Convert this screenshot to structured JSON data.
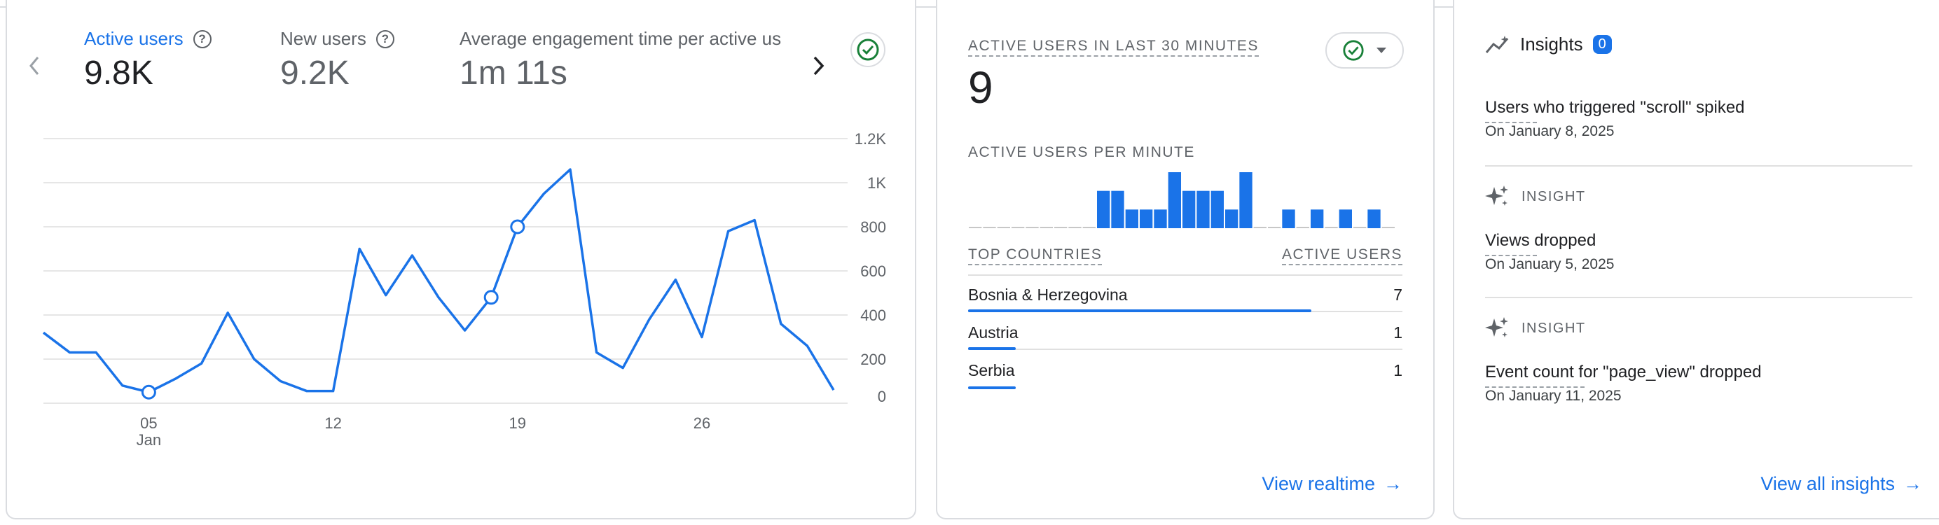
{
  "overview": {
    "metrics": [
      {
        "label": "Active users",
        "value": "9.8K",
        "active": true,
        "help": "?"
      },
      {
        "label": "New users",
        "value": "9.2K",
        "active": false,
        "help": "?"
      },
      {
        "label": "Average engagement time per active us",
        "value": "1m 11s",
        "active": false
      }
    ],
    "nav_prev": "‹",
    "nav_next": "›",
    "status_icon": "check-circle-icon"
  },
  "chart_data": {
    "type": "line",
    "x": [
      1,
      2,
      3,
      4,
      5,
      6,
      7,
      8,
      9,
      10,
      11,
      12,
      13,
      14,
      15,
      16,
      17,
      18,
      19,
      20,
      21,
      22,
      23,
      24,
      25,
      26,
      27,
      28,
      29,
      30,
      31
    ],
    "values": [
      320,
      230,
      230,
      80,
      50,
      110,
      180,
      410,
      200,
      100,
      55,
      55,
      700,
      490,
      670,
      480,
      330,
      480,
      800,
      950,
      1060,
      230,
      160,
      380,
      560,
      300,
      780,
      830,
      360,
      260,
      60
    ],
    "marked_points": [
      5,
      18,
      19
    ],
    "x_tick_labels": [
      {
        "x": 5,
        "label": "05",
        "sub": "Jan"
      },
      {
        "x": 12,
        "label": "12"
      },
      {
        "x": 19,
        "label": "19"
      },
      {
        "x": 26,
        "label": "26"
      }
    ],
    "y_tick_labels": [
      "0",
      "200",
      "400",
      "600",
      "800",
      "1K",
      "1.2K"
    ],
    "y_ticks": [
      0,
      200,
      400,
      600,
      800,
      1000,
      1200
    ],
    "ylim": [
      0,
      1200
    ],
    "grid": true,
    "series_color": "#1a73e8"
  },
  "realtime": {
    "title": "ACTIVE USERS IN LAST 30 MINUTES",
    "value": "9",
    "per_minute_label": "ACTIVE USERS PER MINUTE",
    "per_minute": [
      0,
      0,
      0,
      0,
      0,
      0,
      0,
      0,
      0,
      2,
      2,
      1,
      1,
      1,
      3,
      2,
      2,
      2,
      1,
      3,
      0,
      0,
      1,
      0,
      1,
      0,
      1,
      0,
      1,
      0
    ],
    "countries_header": "TOP COUNTRIES",
    "users_header": "ACTIVE USERS",
    "countries": [
      {
        "name": "Bosnia & Herzegovina",
        "value": "7",
        "share": 0.79
      },
      {
        "name": "Austria",
        "value": "1",
        "share": 0.11
      },
      {
        "name": "Serbia",
        "value": "1",
        "share": 0.11
      }
    ],
    "view_link": "View realtime",
    "arrow": "→"
  },
  "insights": {
    "title": "Insights",
    "badge": "0",
    "items": [
      {
        "tag": "",
        "title": "Users who triggered \"scroll\" spiked",
        "date": "On January 8, 2025"
      },
      {
        "tag": "INSIGHT",
        "title": "Views dropped",
        "date": "On January 5, 2025"
      },
      {
        "tag": "INSIGHT",
        "title": "Event count for \"page_view\" dropped",
        "date": "On January 11, 2025"
      }
    ],
    "view_link": "View all insights",
    "arrow": "→"
  }
}
